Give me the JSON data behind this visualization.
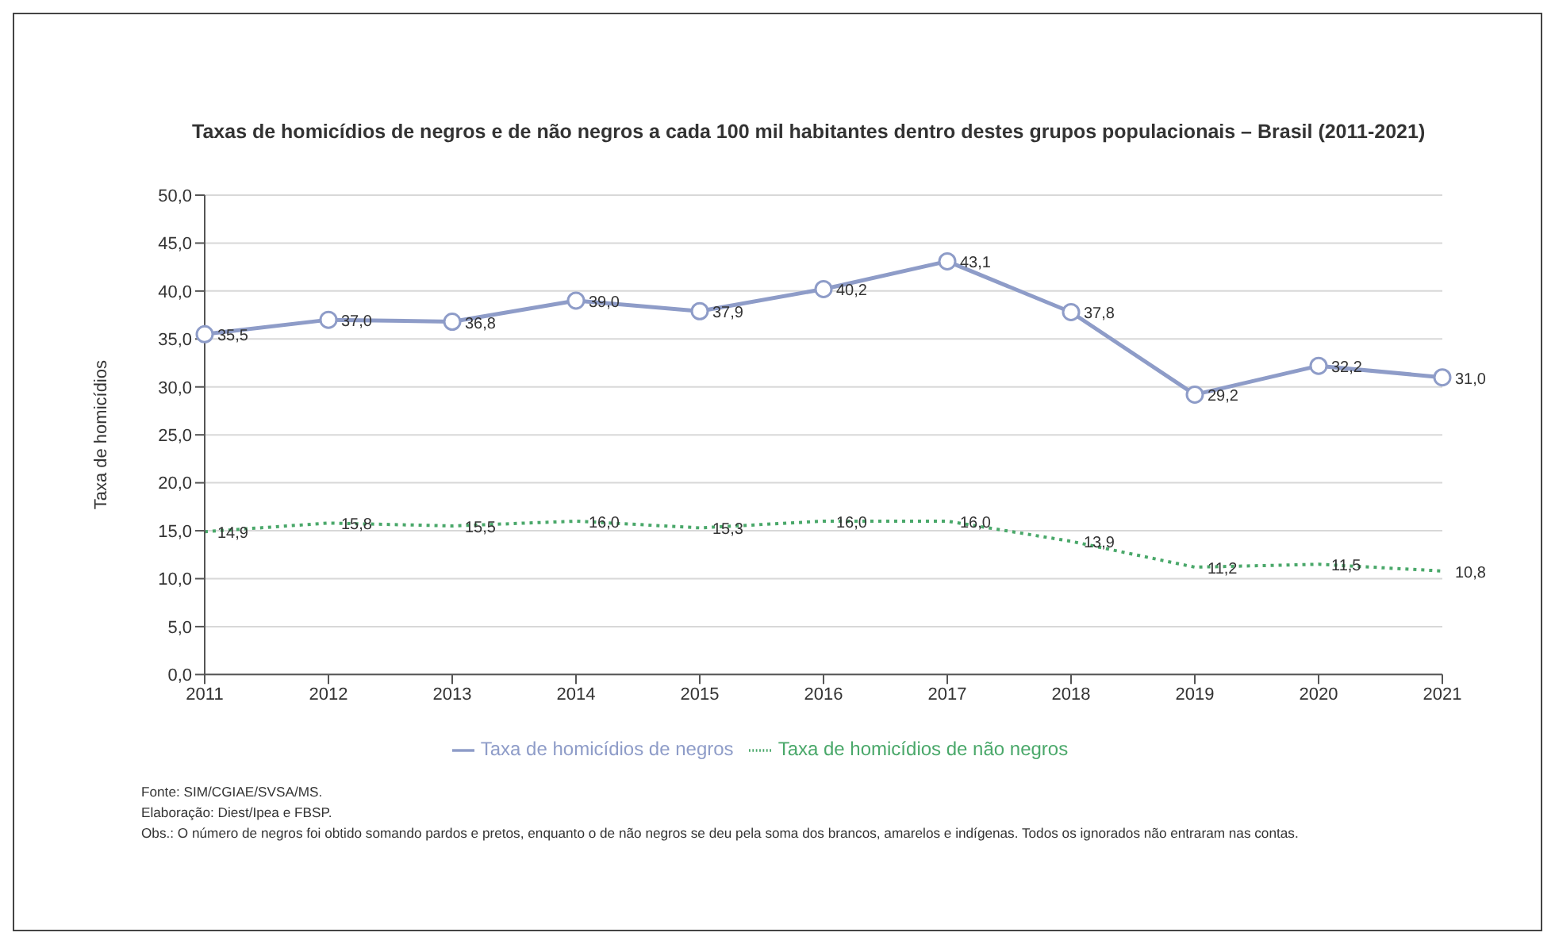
{
  "chart_data": {
    "type": "line",
    "title": "Taxas de homicídios de negros e de não negros a cada 100 mil habitantes dentro destes grupos populacionais – Brasil (2011-2021)",
    "ylabel": "Taxa de homicídios",
    "categories": [
      "2011",
      "2012",
      "2013",
      "2014",
      "2015",
      "2016",
      "2017",
      "2018",
      "2019",
      "2020",
      "2021"
    ],
    "series": [
      {
        "name": "Taxa de homicídios de negros",
        "color": "#8e9cc8",
        "marker": "circle",
        "line_style": "solid",
        "values": [
          35.5,
          37.0,
          36.8,
          39.0,
          37.9,
          40.2,
          43.1,
          37.8,
          29.2,
          32.2,
          31.0
        ],
        "value_labels": [
          "35,5",
          "37,0",
          "36,8",
          "39,0",
          "37,9",
          "40,2",
          "43,1",
          "37,8",
          "29,2",
          "32,2",
          "31,0"
        ]
      },
      {
        "name": "Taxa de homicídios de não negros",
        "color": "#4aa86a",
        "marker": "none",
        "line_style": "dotted",
        "values": [
          14.9,
          15.8,
          15.5,
          16.0,
          15.3,
          16.0,
          16.0,
          13.9,
          11.2,
          11.5,
          10.8
        ],
        "value_labels": [
          "14,9",
          "15,8",
          "15,5",
          "16,0",
          "15,3",
          "16,0",
          "16,0",
          "13,9",
          "11,2",
          "11,5",
          "10,8"
        ]
      }
    ],
    "ylim": [
      0,
      50
    ],
    "yticks": [
      {
        "value": 0,
        "label": "0,0"
      },
      {
        "value": 5,
        "label": "5,0"
      },
      {
        "value": 10,
        "label": "10,0"
      },
      {
        "value": 15,
        "label": "15,0"
      },
      {
        "value": 20,
        "label": "20,0"
      },
      {
        "value": 25,
        "label": "25,0"
      },
      {
        "value": 30,
        "label": "30,0"
      },
      {
        "value": 35,
        "label": "35,0"
      },
      {
        "value": 40,
        "label": "40,0"
      },
      {
        "value": 45,
        "label": "45,0"
      },
      {
        "value": 50,
        "label": "50,0"
      }
    ],
    "grid": "y",
    "legend": "bottom",
    "annotations": [
      "Fonte: SIM/CGIAE/SVSA/MS.",
      "Elaboração: Diest/Ipea e FBSP.",
      "Obs.: O número de negros foi obtido somando pardos e pretos, enquanto o de não negros se deu pela soma dos brancos, amarelos e indígenas. Todos os ignorados não entraram nas contas."
    ]
  }
}
